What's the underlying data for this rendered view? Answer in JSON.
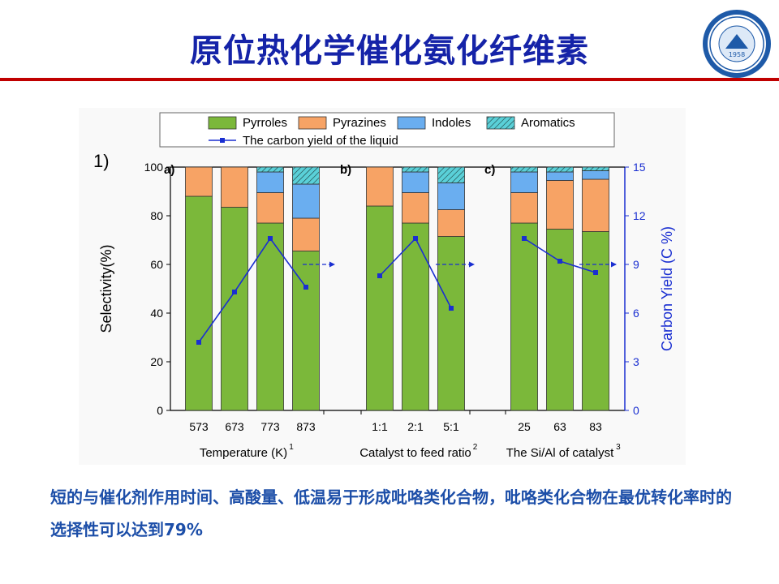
{
  "slide": {
    "title": "原位热化学催化氨化纤维素",
    "caption": "短的与催化剂作用时间、高酸量、低温易于形成吡咯类化合物，吡咯类化合物在最优转化率时的选择性可以达到79%",
    "logo_text": "1958"
  },
  "colors": {
    "title": "#1523a8",
    "rule": "#c00000",
    "caption": "#1c4ea8",
    "pyrroles": "#7bb83a",
    "pyrazines": "#f7a365",
    "indoles": "#6aaef0",
    "aromatics": "#5ad0d8",
    "line": "#1a2fd1"
  },
  "chart_data": {
    "type": "bar",
    "figure_label": "1)",
    "legend": [
      "Pyrroles",
      "Pyrazines",
      "Indoles",
      "Aromatics",
      "The carbon yield of the liquid"
    ],
    "ylabel_left": "Selectivity(%)",
    "ylabel_right": "Carbon Yield (C %)",
    "ylim_left": [
      0,
      100
    ],
    "ylim_right": [
      0,
      15
    ],
    "yticks_left": [
      "0",
      "20",
      "40",
      "60",
      "80",
      "100"
    ],
    "yticks_right": [
      "0",
      "3",
      "6",
      "9",
      "12",
      "15"
    ],
    "panels": [
      {
        "label": "a)",
        "xlabel": "Temperature (K)",
        "superscript": "1",
        "categories": [
          "573",
          "673",
          "773",
          "873"
        ],
        "pyrroles": [
          88,
          83.5,
          77,
          65.5
        ],
        "pyrazines": [
          12,
          16.5,
          12.5,
          13.5
        ],
        "indoles": [
          0,
          0,
          8.5,
          14
        ],
        "aromatics": [
          0,
          0,
          2,
          7
        ],
        "carbon_yield": [
          4.2,
          7.3,
          10.6,
          7.6
        ]
      },
      {
        "label": "b)",
        "xlabel": "Catalyst to feed ratio",
        "superscript": "2",
        "categories": [
          "1:1",
          "2:1",
          "5:1"
        ],
        "pyrroles": [
          84,
          77,
          71.5
        ],
        "pyrazines": [
          16,
          12.5,
          11
        ],
        "indoles": [
          0,
          8.5,
          11
        ],
        "aromatics": [
          0,
          2,
          6.5
        ],
        "carbon_yield": [
          8.3,
          10.6,
          6.3
        ]
      },
      {
        "label": "c)",
        "xlabel": "The Si/Al of catalyst",
        "superscript": "3",
        "categories": [
          "25",
          "63",
          "83"
        ],
        "pyrroles": [
          77,
          74.5,
          73.5
        ],
        "pyrazines": [
          12.5,
          20,
          21.5
        ],
        "indoles": [
          8.5,
          3.5,
          3.5
        ],
        "aromatics": [
          2,
          2,
          1.5
        ],
        "carbon_yield": [
          10.6,
          9.2,
          8.5
        ]
      }
    ]
  }
}
